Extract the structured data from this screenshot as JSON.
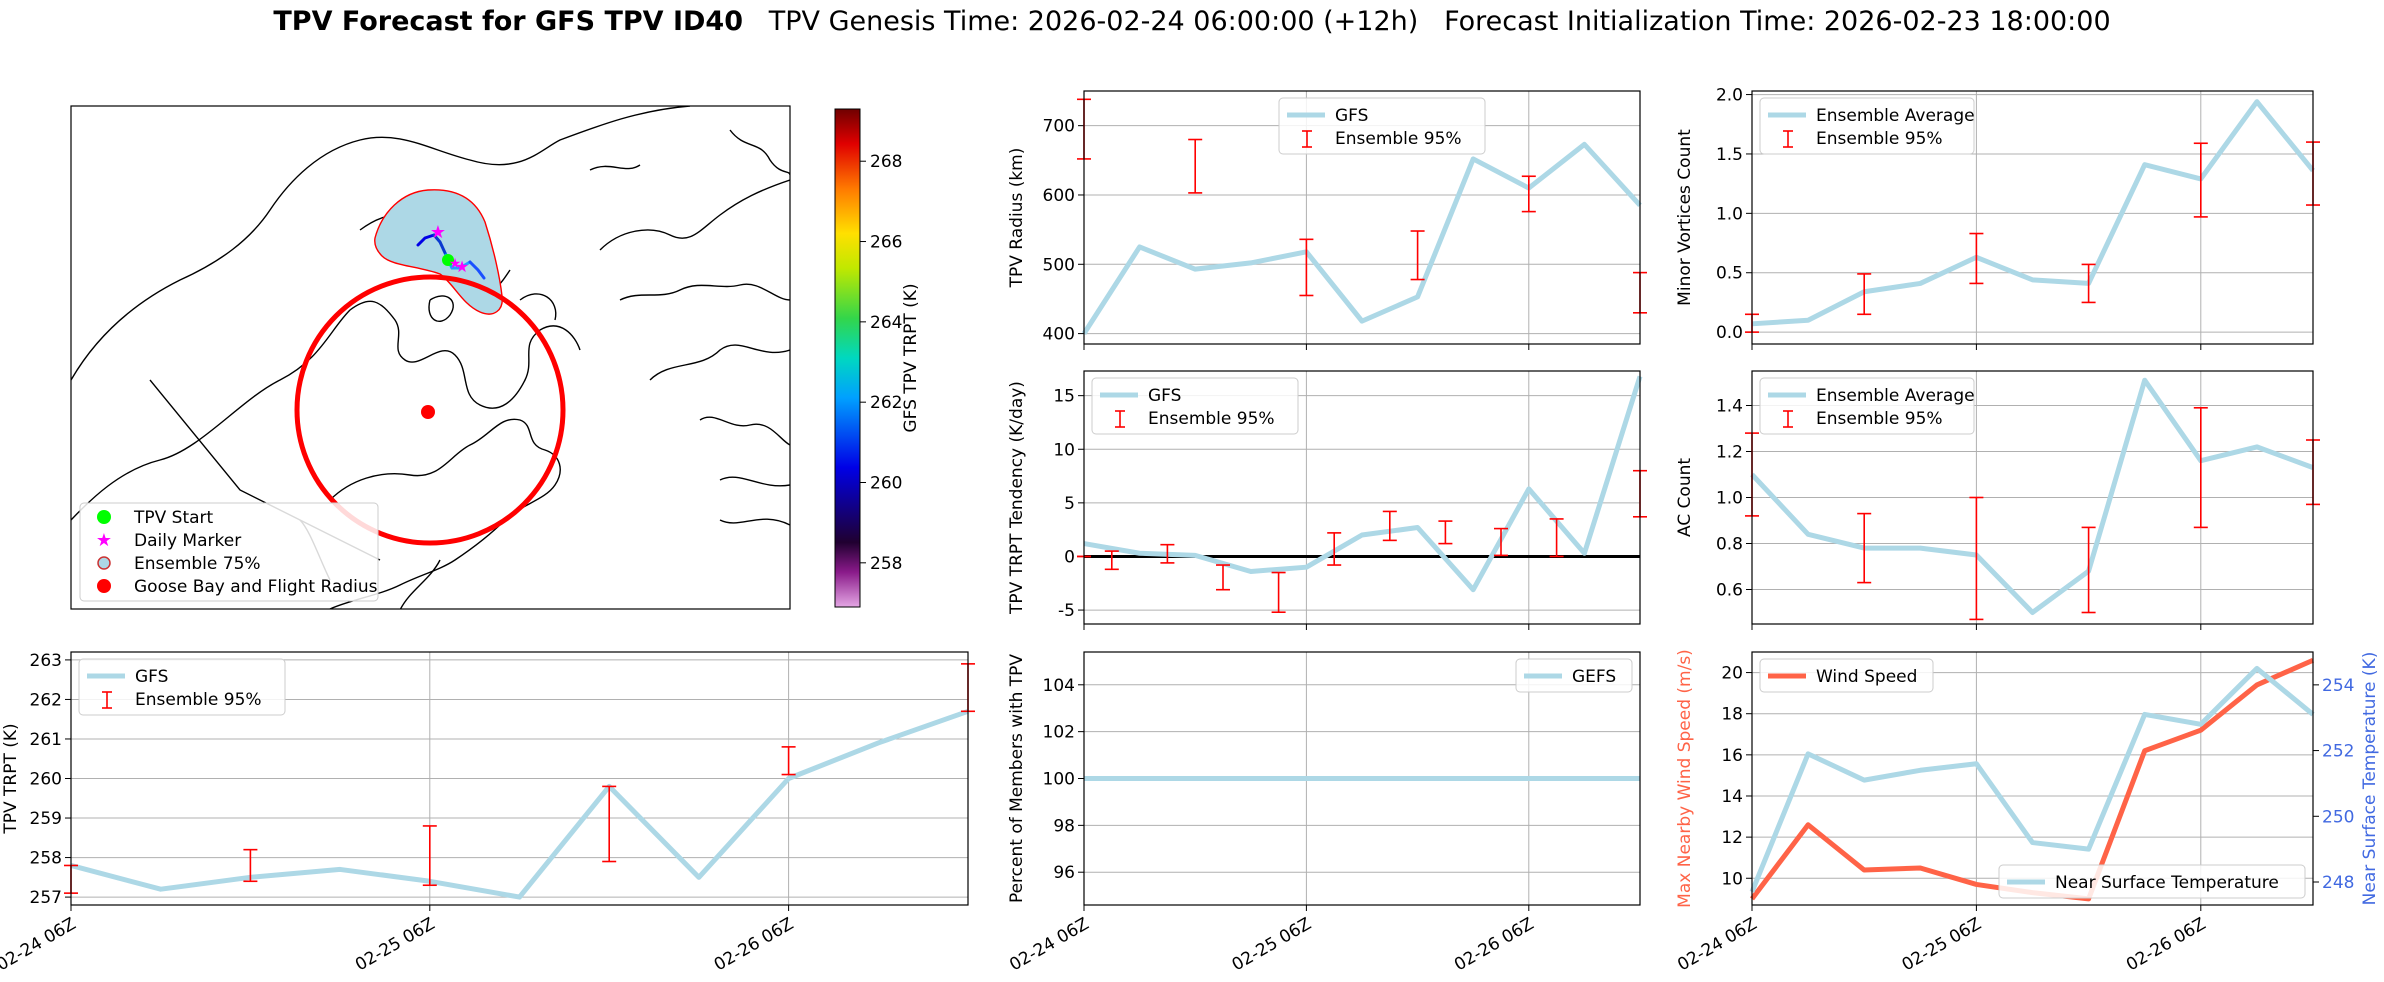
{
  "title": {
    "bold": "TPV Forecast for GFS TPV ID40",
    "genesis": "TPV Genesis Time: 2026-02-24 06:00:00 (+12h)",
    "init": "Forecast Initialization Time: 2026-02-23 18:00:00"
  },
  "colors": {
    "gfs": "#add8e6",
    "ens": "#ff0000",
    "wind": "#ff6347",
    "temp_axis": "#4169e1",
    "zero": "#000000"
  },
  "time_ticks": [
    "02-24 06Z",
    "02-25 06Z",
    "02-26 06Z"
  ],
  "map": {
    "legend": [
      "TPV Start",
      "Daily Marker",
      "Ensemble 75%",
      "Goose Bay and Flight Radius"
    ],
    "colorbar_label": "GFS TPV TRPT (K)",
    "colorbar_ticks": [
      "258",
      "260",
      "262",
      "264",
      "266",
      "268"
    ]
  },
  "chart_data": [
    {
      "id": "radius",
      "type": "line",
      "ylabel": "TPV Radius (km)",
      "ylim": [
        385,
        750
      ],
      "yticks": [
        400,
        500,
        600,
        700
      ],
      "grid": true,
      "legend": [
        "GFS",
        "Ensemble 95%"
      ],
      "legend_loc": "upper-center",
      "x": [
        0,
        12,
        24,
        36,
        48,
        60,
        72,
        84,
        96,
        108,
        120
      ],
      "series": [
        {
          "name": "GFS",
          "values": [
            400,
            525,
            493,
            502,
            518,
            418,
            453,
            652,
            610,
            673,
            585
          ]
        }
      ],
      "errorbars": [
        {
          "x": 0,
          "low": 652,
          "high": 738
        },
        {
          "x": 24,
          "low": 603,
          "high": 680
        },
        {
          "x": 48,
          "low": 455,
          "high": 536
        },
        {
          "x": 72,
          "low": 478,
          "high": 548
        },
        {
          "x": 96,
          "low": 576,
          "high": 627
        },
        {
          "x": 120,
          "low": 430,
          "high": 488
        }
      ]
    },
    {
      "id": "minor",
      "type": "line",
      "ylabel": "Minor Vortices Count",
      "ylim": [
        -0.1,
        2.03
      ],
      "yticks": [
        0.0,
        0.5,
        1.0,
        1.5,
        2.0
      ],
      "yfmt": 1,
      "grid": true,
      "legend": [
        "Ensemble Average",
        "Ensemble 95%"
      ],
      "legend_loc": "upper-left",
      "x": [
        0,
        12,
        24,
        36,
        48,
        60,
        72,
        84,
        96,
        108,
        120
      ],
      "series": [
        {
          "name": "Ensemble Average",
          "values": [
            0.07,
            0.1,
            0.34,
            0.41,
            0.63,
            0.44,
            0.41,
            1.41,
            1.29,
            1.94,
            1.36
          ]
        }
      ],
      "errorbars": [
        {
          "x": 0,
          "low": 0.0,
          "high": 0.15
        },
        {
          "x": 24,
          "low": 0.15,
          "high": 0.49
        },
        {
          "x": 48,
          "low": 0.41,
          "high": 0.83
        },
        {
          "x": 72,
          "low": 0.25,
          "high": 0.57
        },
        {
          "x": 96,
          "low": 0.97,
          "high": 1.59
        },
        {
          "x": 120,
          "low": 1.07,
          "high": 1.6
        }
      ]
    },
    {
      "id": "tendency",
      "type": "line",
      "ylabel": "TPV TRPT Tendency (K/day)",
      "ylim": [
        -6.3,
        17.3
      ],
      "yticks": [
        -5,
        0,
        5,
        10,
        15
      ],
      "grid": true,
      "zero_line": true,
      "legend": [
        "GFS",
        "Ensemble 95%"
      ],
      "legend_loc": "upper-left",
      "x": [
        0,
        12,
        24,
        36,
        48,
        60,
        72,
        84,
        96,
        108,
        120
      ],
      "series": [
        {
          "name": "GFS",
          "values": [
            1.2,
            0.3,
            0.1,
            -1.4,
            -1.0,
            2.0,
            2.7,
            -3.1,
            6.3,
            0.3,
            16.8
          ]
        }
      ],
      "errorbars": [
        {
          "x": 0,
          "low": 0.0,
          "high": 0.0
        },
        {
          "x": 6,
          "low": -1.2,
          "high": 0.5
        },
        {
          "x": 18,
          "low": -0.6,
          "high": 1.1
        },
        {
          "x": 30,
          "low": -3.1,
          "high": -0.8
        },
        {
          "x": 42,
          "low": -5.2,
          "high": -1.5
        },
        {
          "x": 54,
          "low": -0.8,
          "high": 2.2
        },
        {
          "x": 66,
          "low": 1.5,
          "high": 4.2
        },
        {
          "x": 78,
          "low": 1.2,
          "high": 3.3
        },
        {
          "x": 90,
          "low": 0.1,
          "high": 2.6
        },
        {
          "x": 102,
          "low": 0.0,
          "high": 3.5
        },
        {
          "x": 120,
          "low": 3.7,
          "high": 8.0
        }
      ]
    },
    {
      "id": "ac",
      "type": "line",
      "ylabel": "AC Count",
      "ylim": [
        0.45,
        1.55
      ],
      "yticks": [
        0.6,
        0.8,
        1.0,
        1.2,
        1.4
      ],
      "yfmt": 1,
      "grid": true,
      "legend": [
        "Ensemble Average",
        "Ensemble 95%"
      ],
      "legend_loc": "upper-left",
      "x": [
        0,
        12,
        24,
        36,
        48,
        60,
        72,
        84,
        96,
        108,
        120
      ],
      "series": [
        {
          "name": "Ensemble Average",
          "values": [
            1.1,
            0.84,
            0.78,
            0.78,
            0.75,
            0.5,
            0.68,
            1.51,
            1.16,
            1.22,
            1.13
          ]
        }
      ],
      "errorbars": [
        {
          "x": 0,
          "low": 0.92,
          "high": 1.28
        },
        {
          "x": 24,
          "low": 0.63,
          "high": 0.93
        },
        {
          "x": 48,
          "low": 0.47,
          "high": 1.0
        },
        {
          "x": 72,
          "low": 0.5,
          "high": 0.87
        },
        {
          "x": 96,
          "low": 0.87,
          "high": 1.39
        },
        {
          "x": 120,
          "low": 0.97,
          "high": 1.25
        }
      ]
    },
    {
      "id": "trpt",
      "type": "line",
      "ylabel": "TPV TRPT (K)",
      "ylim": [
        256.8,
        263.2
      ],
      "yticks": [
        257,
        258,
        259,
        260,
        261,
        262,
        263
      ],
      "grid": true,
      "legend": [
        "GFS",
        "Ensemble 95%"
      ],
      "legend_loc": "upper-left",
      "x": [
        0,
        12,
        24,
        36,
        48,
        60,
        72,
        84,
        96,
        108,
        120
      ],
      "series": [
        {
          "name": "GFS",
          "values": [
            257.8,
            257.2,
            257.5,
            257.7,
            257.4,
            257.0,
            259.8,
            257.5,
            260.0,
            260.9,
            261.7
          ]
        }
      ],
      "errorbars": [
        {
          "x": 0,
          "low": 257.1,
          "high": 257.8
        },
        {
          "x": 24,
          "low": 257.4,
          "high": 258.2
        },
        {
          "x": 48,
          "low": 257.3,
          "high": 258.8
        },
        {
          "x": 72,
          "low": 257.9,
          "high": 259.8
        },
        {
          "x": 96,
          "low": 260.1,
          "high": 260.8
        },
        {
          "x": 120,
          "low": 261.7,
          "high": 262.9
        }
      ]
    },
    {
      "id": "members",
      "type": "line",
      "ylabel": "Percent of Members with TPV",
      "ylim": [
        94.6,
        105.4
      ],
      "yticks": [
        96,
        98,
        100,
        102,
        104
      ],
      "grid": true,
      "legend": [
        "GEFS"
      ],
      "legend_loc": "upper-right",
      "x": [
        0,
        12,
        24,
        36,
        48,
        60,
        72,
        84,
        96,
        108,
        120
      ],
      "series": [
        {
          "name": "GEFS",
          "values": [
            100,
            100,
            100,
            100,
            100,
            100,
            100,
            100,
            100,
            100,
            100
          ]
        }
      ],
      "errorbars": []
    },
    {
      "id": "wind",
      "type": "line",
      "ylabel": "Max Nearby Wind Speed (m/s)",
      "ylim": [
        8.7,
        21.0
      ],
      "yticks": [
        10,
        12,
        14,
        16,
        18,
        20
      ],
      "grid": true,
      "y2label": "Near Surface Temperature (K)",
      "y2lim": [
        247.3,
        255.0
      ],
      "y2ticks": [
        248,
        250,
        252,
        254
      ],
      "legend": [
        "Wind Speed"
      ],
      "legend_loc": "upper-left",
      "legend2": [
        "Near Surface Temperature"
      ],
      "legend2_loc": "lower-right",
      "x": [
        0,
        12,
        24,
        36,
        48,
        60,
        72,
        84,
        96,
        108,
        120
      ],
      "series": [
        {
          "name": "Wind Speed",
          "axis": "left",
          "values": [
            9.0,
            12.6,
            10.4,
            10.5,
            9.7,
            9.3,
            9.0,
            16.2,
            17.2,
            19.4,
            20.6
          ]
        },
        {
          "name": "Near Surface Temperature",
          "axis": "right",
          "values": [
            247.7,
            251.9,
            251.1,
            251.4,
            251.6,
            249.2,
            249.0,
            253.1,
            252.8,
            254.5,
            253.1
          ]
        }
      ],
      "errorbars": []
    }
  ]
}
